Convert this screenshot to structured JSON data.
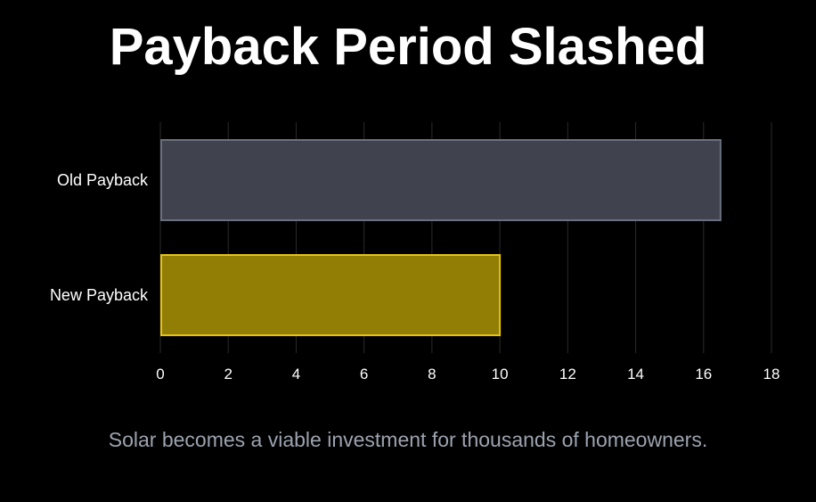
{
  "header": {
    "title": "Payback Period Slashed"
  },
  "footer": {
    "subtitle": "Solar becomes a viable investment for thousands of homeowners."
  },
  "colors": {
    "background": "#000000",
    "grid": "#2a2a2a",
    "old_fill": "#40434d",
    "old_stroke": "#6b7080",
    "new_fill": "#927d05",
    "new_stroke": "#e6c413",
    "text": "#ffffff",
    "subtitle": "#9ca3af"
  },
  "chart_data": {
    "type": "bar",
    "orientation": "horizontal",
    "categories": [
      "Old Payback",
      "New Payback"
    ],
    "values": [
      16.5,
      10
    ],
    "xlim": [
      0,
      18
    ],
    "xticks": [
      0,
      2,
      4,
      6,
      8,
      10,
      12,
      14,
      16,
      18
    ],
    "grid": true,
    "xlabel": "",
    "ylabel": ""
  }
}
